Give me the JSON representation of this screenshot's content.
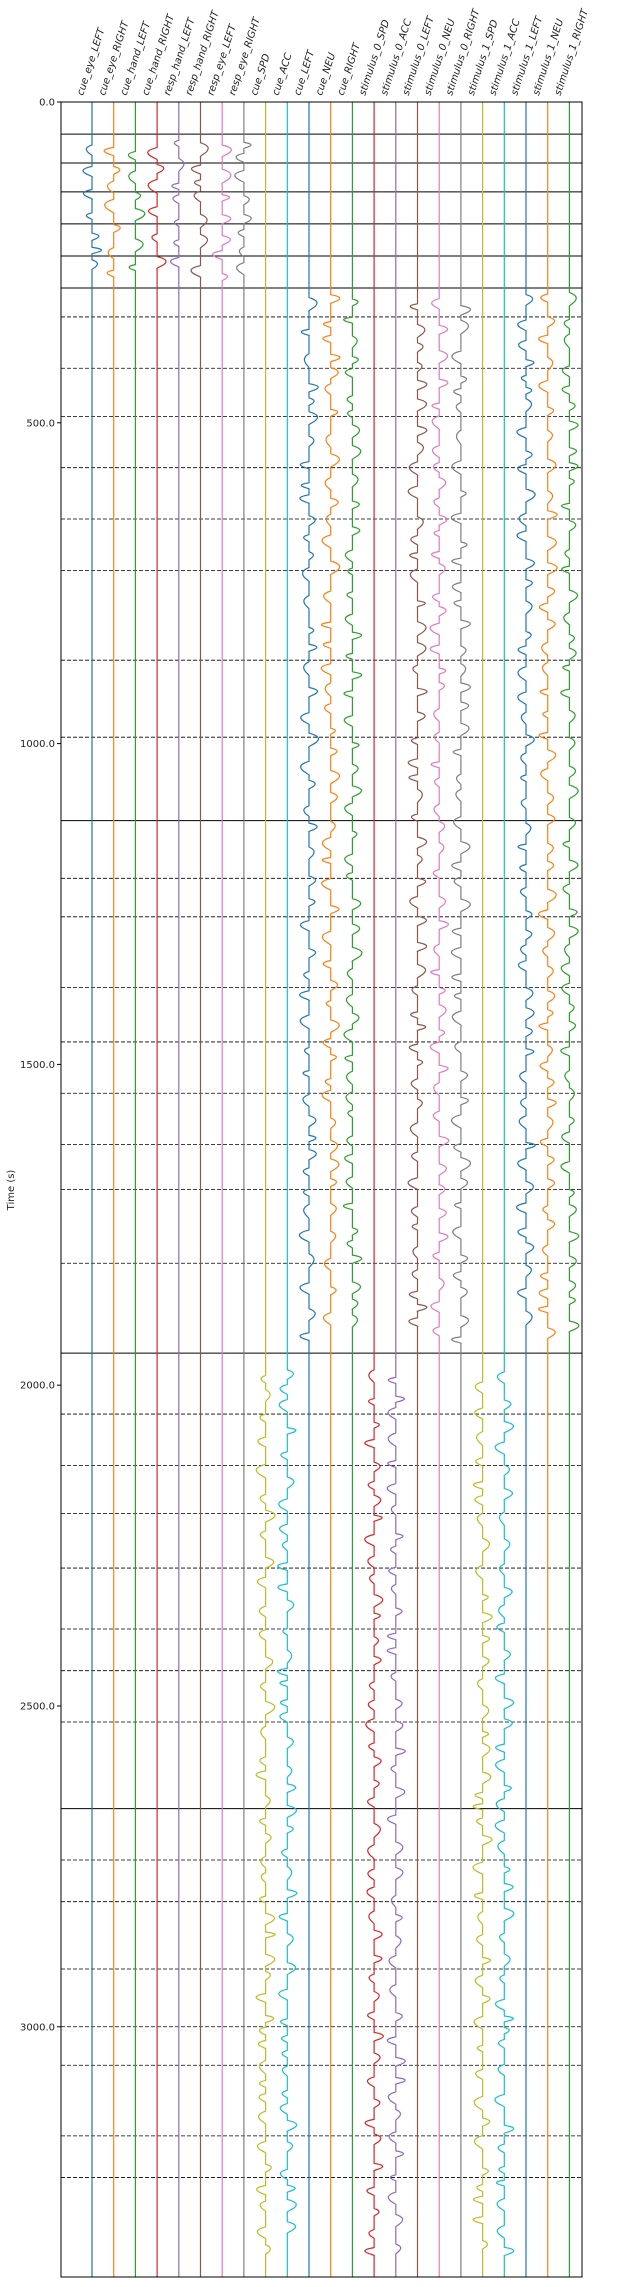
{
  "chart_data": {
    "type": "line",
    "title": "",
    "ylabel": "Time (s)",
    "ylim": [
      0,
      3390
    ],
    "y_inverted": true,
    "y_ticks": [
      0,
      500,
      1000,
      1500,
      2000,
      2500,
      3000
    ],
    "y_tick_labels": [
      "0.0",
      "500.0",
      "1000.0",
      "1500.0",
      "2000.0",
      "2500.0",
      "3000.0"
    ],
    "grid": false,
    "channels": [
      {
        "name": "cue_eye_LEFT",
        "color": "#1f77b4",
        "active": [
          [
            50,
            285
          ]
        ]
      },
      {
        "name": "cue_eye_RIGHT",
        "color": "#ff7f0e",
        "active": [
          [
            50,
            285
          ]
        ]
      },
      {
        "name": "cue_hand_LEFT",
        "color": "#2ca02c",
        "active": [
          [
            50,
            285
          ]
        ]
      },
      {
        "name": "cue_hand_RIGHT",
        "color": "#d62728",
        "active": [
          [
            50,
            285
          ]
        ]
      },
      {
        "name": "resp_hand_LEFT",
        "color": "#9467bd",
        "active": [
          [
            50,
            285
          ]
        ]
      },
      {
        "name": "resp_hand_RIGHT",
        "color": "#8c564b",
        "active": [
          [
            50,
            285
          ]
        ]
      },
      {
        "name": "resp_eye_LEFT",
        "color": "#e377c2",
        "active": [
          [
            50,
            285
          ]
        ]
      },
      {
        "name": "resp_eye_RIGHT",
        "color": "#7f7f7f",
        "active": [
          [
            50,
            285
          ]
        ]
      },
      {
        "name": "cue_SPD",
        "color": "#bcbd22",
        "active": [
          [
            1970,
            3360
          ]
        ]
      },
      {
        "name": "cue_ACC",
        "color": "#17becf",
        "active": [
          [
            1970,
            3360
          ]
        ]
      },
      {
        "name": "cue_LEFT",
        "color": "#1f77b4",
        "active": [
          [
            290,
            1940
          ]
        ]
      },
      {
        "name": "cue_NEU",
        "color": "#ff7f0e",
        "active": [
          [
            290,
            1940
          ]
        ]
      },
      {
        "name": "cue_RIGHT",
        "color": "#2ca02c",
        "active": [
          [
            290,
            1940
          ]
        ]
      },
      {
        "name": "stimulus_0_SPD",
        "color": "#d62728",
        "active": [
          [
            1970,
            3360
          ]
        ]
      },
      {
        "name": "stimulus_0_ACC",
        "color": "#9467bd",
        "active": [
          [
            1970,
            3360
          ]
        ]
      },
      {
        "name": "stimulus_0_LEFT",
        "color": "#8c564b",
        "active": [
          [
            290,
            1940
          ]
        ]
      },
      {
        "name": "stimulus_0_NEU",
        "color": "#e377c2",
        "active": [
          [
            290,
            1940
          ]
        ]
      },
      {
        "name": "stimulus_0_RIGHT",
        "color": "#7f7f7f",
        "active": [
          [
            290,
            1940
          ]
        ]
      },
      {
        "name": "stimulus_1_SPD",
        "color": "#bcbd22",
        "active": [
          [
            1970,
            3360
          ]
        ]
      },
      {
        "name": "stimulus_1_ACC",
        "color": "#17becf",
        "active": [
          [
            1970,
            3360
          ]
        ]
      },
      {
        "name": "stimulus_1_LEFT",
        "color": "#1f77b4",
        "active": [
          [
            290,
            1940
          ]
        ]
      },
      {
        "name": "stimulus_1_NEU",
        "color": "#ff7f0e",
        "active": [
          [
            290,
            1940
          ]
        ]
      },
      {
        "name": "stimulus_1_RIGHT",
        "color": "#2ca02c",
        "active": [
          [
            290,
            1940
          ]
        ]
      }
    ],
    "run_boundaries": [
      0,
      50,
      95,
      140,
      190,
      240,
      290,
      1120,
      1950,
      2660,
      3390
    ],
    "trial_boundaries": [
      335,
      415,
      490,
      570,
      650,
      730,
      870,
      990,
      1210,
      1270,
      1380,
      1465,
      1545,
      1625,
      1695,
      1810,
      2045,
      2125,
      2200,
      2285,
      2380,
      2445,
      2525,
      2740,
      2805,
      2910,
      3000,
      3060,
      3170,
      3235
    ]
  }
}
